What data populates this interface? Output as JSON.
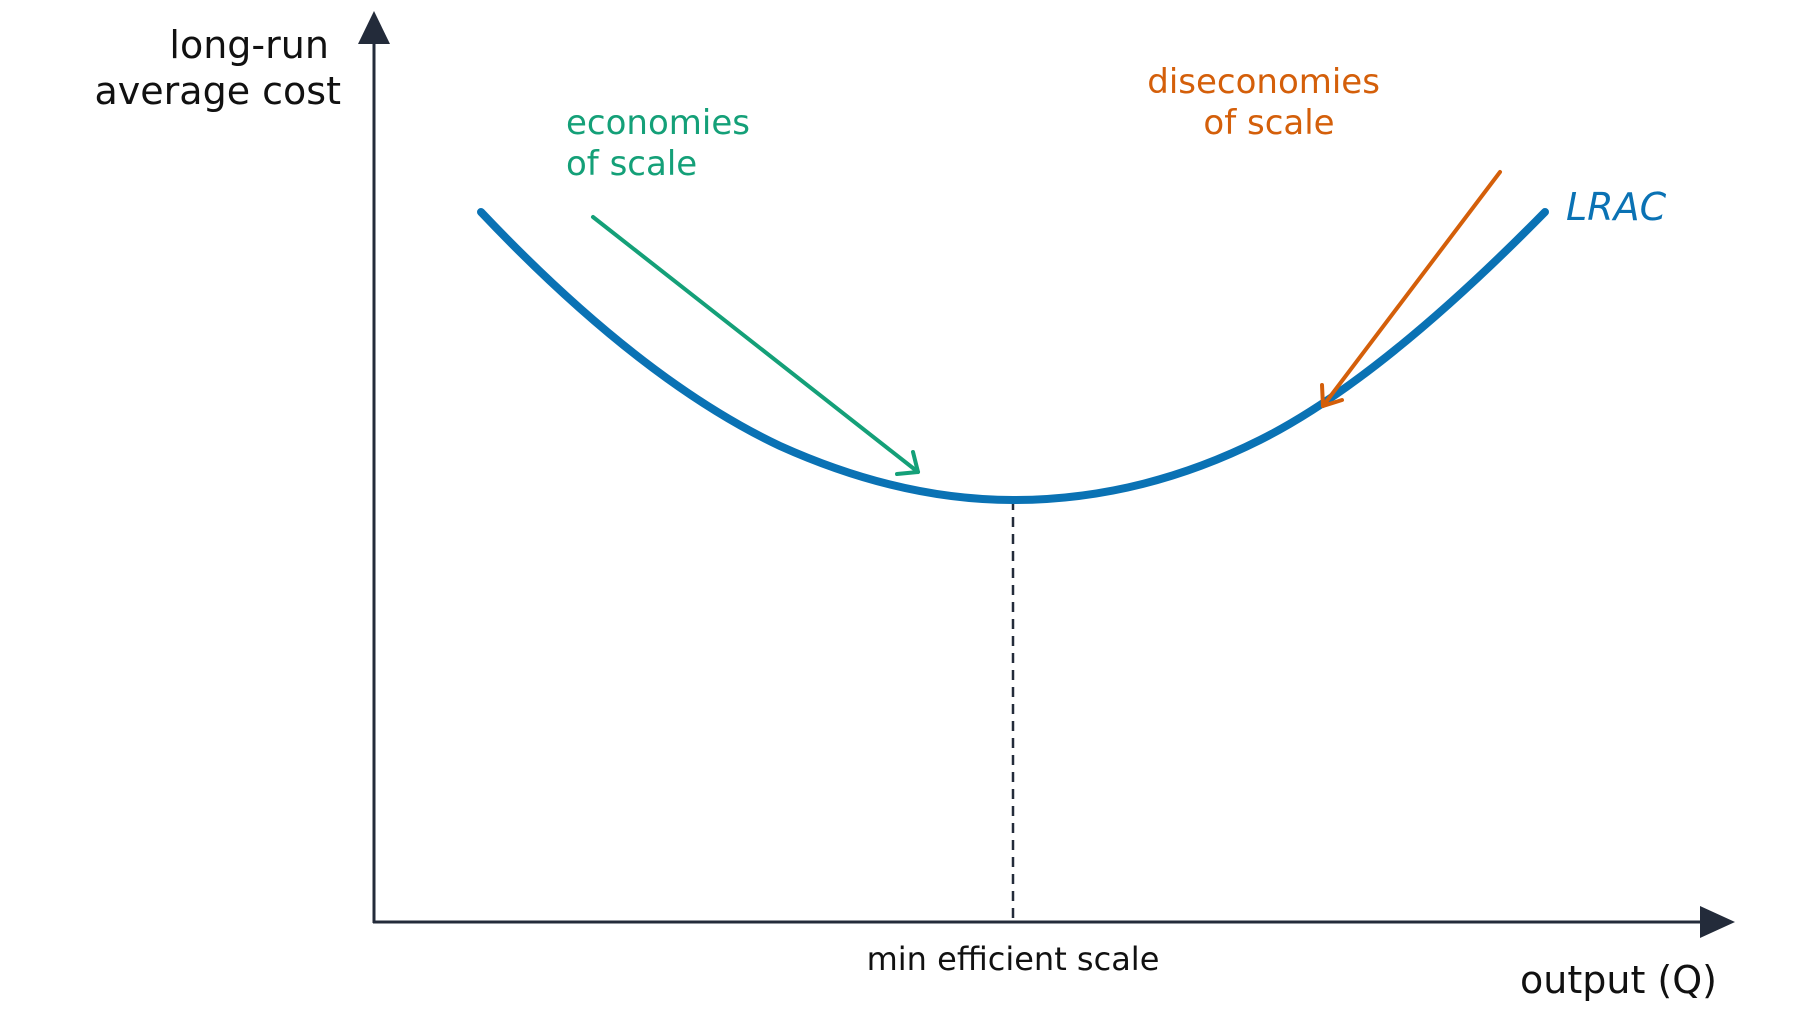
{
  "axes": {
    "y_label_lines": [
      "long-run",
      "average cost"
    ],
    "x_label": "output (Q)",
    "axis_color": "#232b3a"
  },
  "curve": {
    "label": "LRAC",
    "color": "#0a72b4"
  },
  "annotations": {
    "economies": {
      "lines": [
        "economies",
        "of scale"
      ],
      "color": "#14a078"
    },
    "diseconomies": {
      "lines": [
        "diseconomies",
        "of scale"
      ],
      "color": "#d45f0a"
    },
    "min_scale": {
      "label": "min efficient scale"
    }
  }
}
